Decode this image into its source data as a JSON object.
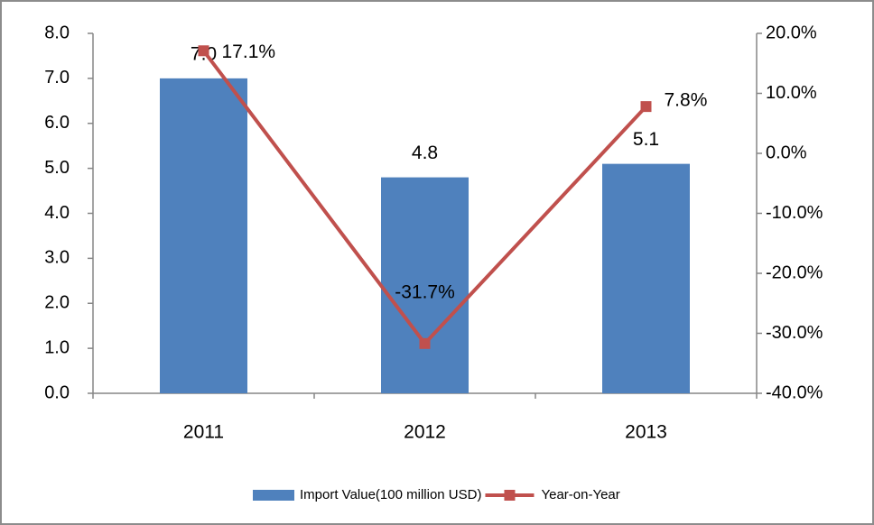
{
  "chart_data": {
    "type": "bar",
    "categories": [
      "2011",
      "2012",
      "2013"
    ],
    "series": [
      {
        "name": "Import Value(100 million USD)",
        "type": "bar",
        "color": "#4f81bd",
        "values": [
          7.0,
          4.8,
          5.1
        ],
        "value_labels": [
          "7.0",
          "4.8",
          "5.1"
        ]
      },
      {
        "name": "Year-on-Year",
        "type": "line",
        "axis": "y2",
        "color": "#c0504d",
        "values": [
          17.1,
          -31.7,
          7.8
        ],
        "value_labels": [
          "17.1%",
          "-31.7%",
          "7.8%"
        ]
      }
    ],
    "ylim": [
      0,
      8
    ],
    "yticks": [
      {
        "value": 0,
        "label": "0.0"
      },
      {
        "value": 1,
        "label": "1.0"
      },
      {
        "value": 2,
        "label": "2.0"
      },
      {
        "value": 3,
        "label": "3.0"
      },
      {
        "value": 4,
        "label": "4.0"
      },
      {
        "value": 5,
        "label": "5.0"
      },
      {
        "value": 6,
        "label": "6.0"
      },
      {
        "value": 7,
        "label": "7.0"
      },
      {
        "value": 8,
        "label": "8.0"
      }
    ],
    "y2lim": [
      -40,
      20
    ],
    "y2ticks": [
      {
        "value": -40,
        "label": "-40.0%"
      },
      {
        "value": -30,
        "label": "-30.0%"
      },
      {
        "value": -20,
        "label": "-20.0%"
      },
      {
        "value": -10,
        "label": "-10.0%"
      },
      {
        "value": 0,
        "label": "0.0%"
      },
      {
        "value": 10,
        "label": "10.0%"
      },
      {
        "value": 20,
        "label": "20.0%"
      }
    ],
    "legend": "bottom",
    "grid": false
  }
}
